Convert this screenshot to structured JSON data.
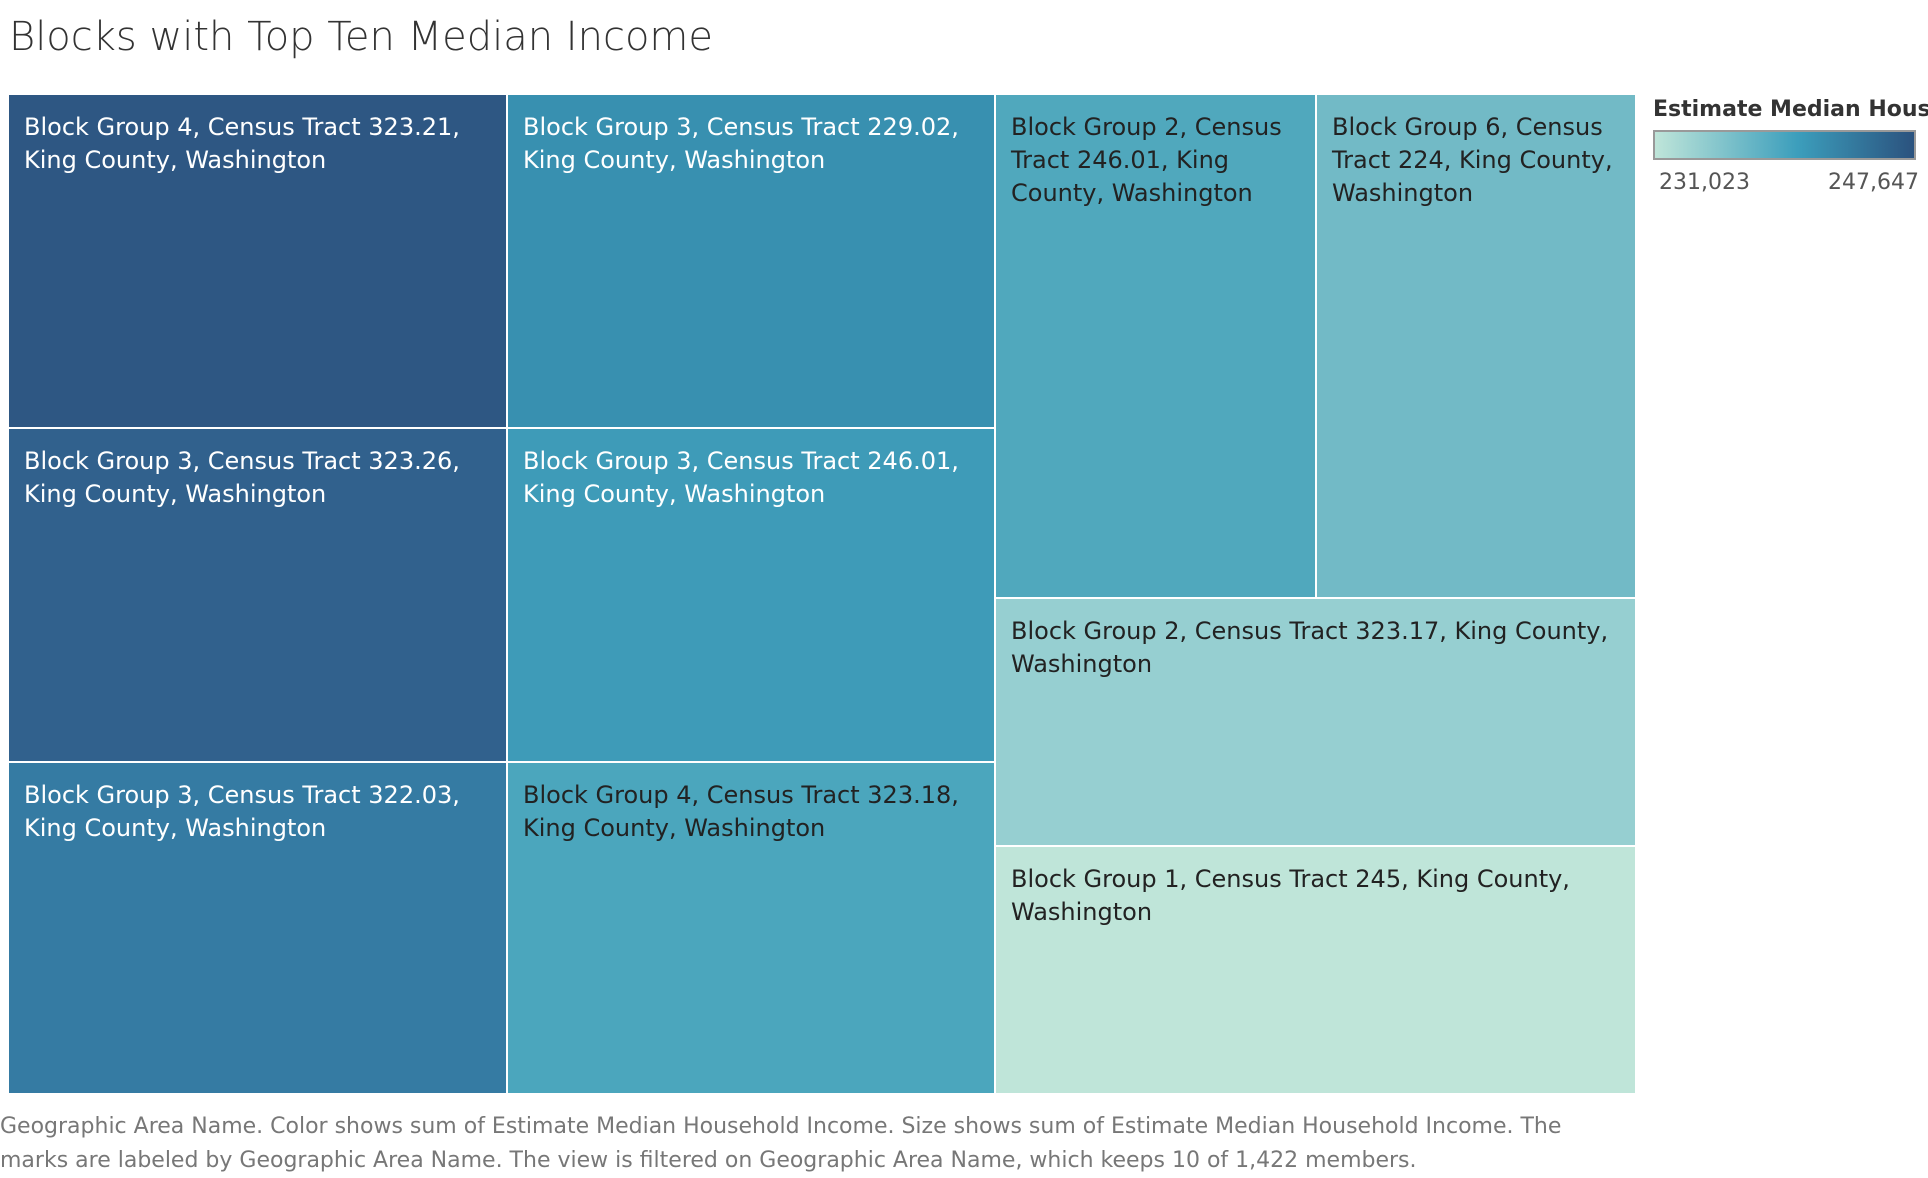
{
  "chart_data": {
    "type": "treemap",
    "title": "Blocks with Top Ten Median Income",
    "legend": {
      "title": "Estimate Median Hous..",
      "min_label": "231,023",
      "max_label": "247,647",
      "min": 231023,
      "max": 247647,
      "color_low": "#bfe5d9",
      "color_mid": "#3c9ebc",
      "color_high": "#2b527e",
      "position": "right"
    },
    "caption": "Geographic Area Name.  Color shows sum of Estimate Median Household Income.  Size shows sum of Estimate Median Household Income.  The marks are labeled by Geographic Area Name. The view is filtered on Geographic Area Name, which keeps 10 of 1,422 members.",
    "items": [
      {
        "label": "Block Group 4, Census Tract 323.21, King County, Washington",
        "value": 247647,
        "color": "#2e5783",
        "text_color": "#ffffff"
      },
      {
        "label": "Block Group 3, Census Tract 323.26, King County, Washington",
        "value": 246500,
        "color": "#31618d",
        "text_color": "#ffffff"
      },
      {
        "label": "Block Group 3, Census Tract 322.03, King County, Washington",
        "value": 245000,
        "color": "#357ba3",
        "text_color": "#ffffff"
      },
      {
        "label": "Block Group 3, Census Tract 229.02, King County, Washington",
        "value": 243500,
        "color": "#3890b0",
        "text_color": "#ffffff"
      },
      {
        "label": "Block Group 3, Census Tract 246.01, King County, Washington",
        "value": 242500,
        "color": "#3e9bb8",
        "text_color": "#ffffff"
      },
      {
        "label": "Block Group 4, Census Tract 323.18, King County, Washington",
        "value": 241000,
        "color": "#4ba6bd",
        "text_color": "#222222"
      },
      {
        "label": "Block Group 2, Census Tract 246.01, King County, Washington",
        "value": 240500,
        "color": "#50a8bd",
        "text_color": "#222222"
      },
      {
        "label": "Block Group 6, Census Tract 224, King County, Washington",
        "value": 238500,
        "color": "#72bac6",
        "text_color": "#222222"
      },
      {
        "label": "Block Group 2, Census Tract 323.17, King County, Washington",
        "value": 235000,
        "color": "#96cfd1",
        "text_color": "#222222"
      },
      {
        "label": "Block Group 1, Census Tract 245, King County, Washington",
        "value": 231023,
        "color": "#bfe5d9",
        "text_color": "#222222"
      }
    ]
  }
}
